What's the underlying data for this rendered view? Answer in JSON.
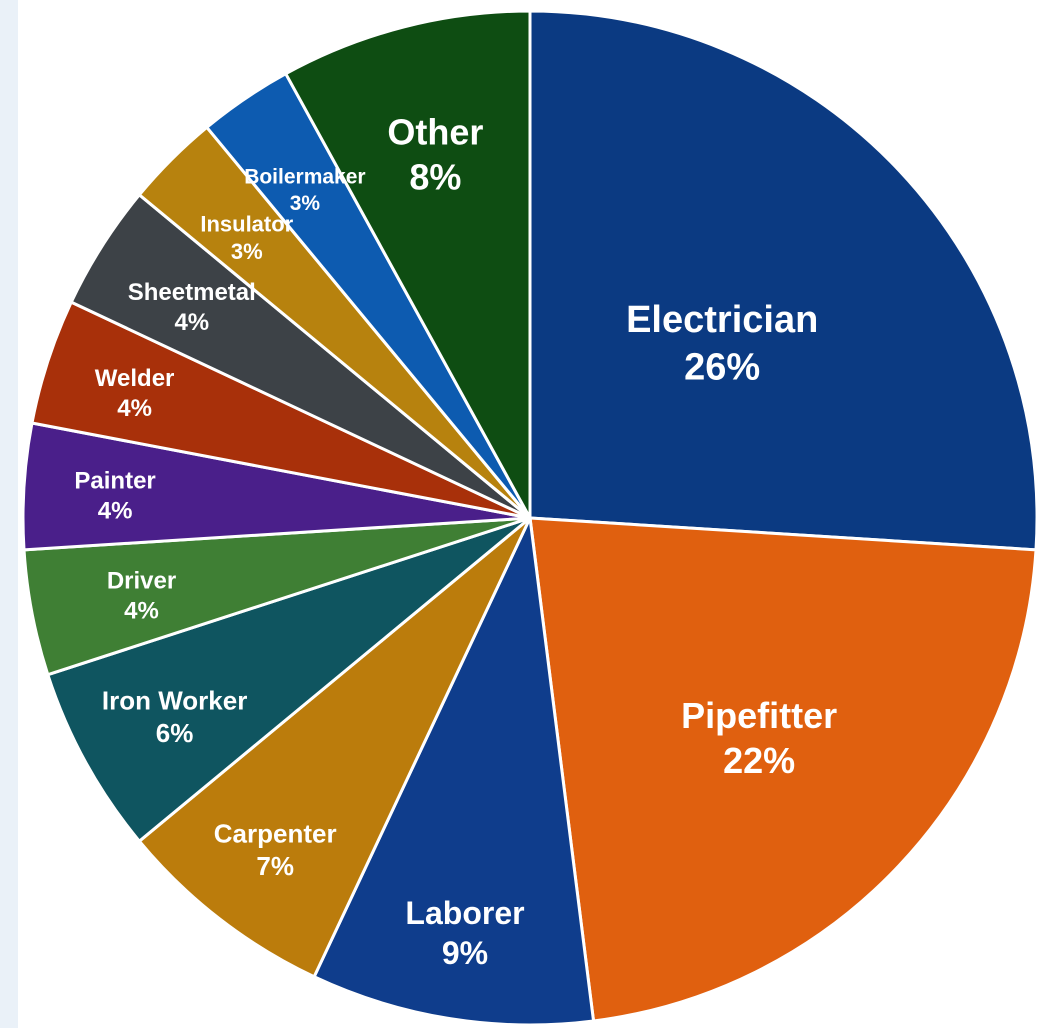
{
  "chart_data": {
    "type": "pie",
    "title": "",
    "start_angle_deg": 0,
    "direction": "clockwise",
    "slices": [
      {
        "label": "Electrician",
        "value": 26,
        "display": "26%",
        "color": "#0b3a82"
      },
      {
        "label": "Pipefitter",
        "value": 22,
        "display": "22%",
        "color": "#e0600f"
      },
      {
        "label": "Laborer",
        "value": 9,
        "display": "9%",
        "color": "#0f3d8c"
      },
      {
        "label": "Carpenter",
        "value": 7,
        "display": "7%",
        "color": "#bb7c0c"
      },
      {
        "label": "Iron Worker",
        "value": 6,
        "display": "6%",
        "color": "#0f5560"
      },
      {
        "label": "Driver",
        "value": 4,
        "display": "4%",
        "color": "#3f7f34"
      },
      {
        "label": "Painter",
        "value": 4,
        "display": "4%",
        "color": "#4a1f8a"
      },
      {
        "label": "Welder",
        "value": 4,
        "display": "4%",
        "color": "#a8300a"
      },
      {
        "label": "Sheetmetal",
        "value": 4,
        "display": "4%",
        "color": "#3d4247"
      },
      {
        "label": "Insulator",
        "value": 3,
        "display": "3%",
        "color": "#b7820e"
      },
      {
        "label": "Boilermaker",
        "value": 3,
        "display": "3%",
        "color": "#0d5bb0"
      },
      {
        "label": "Other",
        "value": 8,
        "display": "8%",
        "color": "#0e4d12"
      }
    ]
  }
}
